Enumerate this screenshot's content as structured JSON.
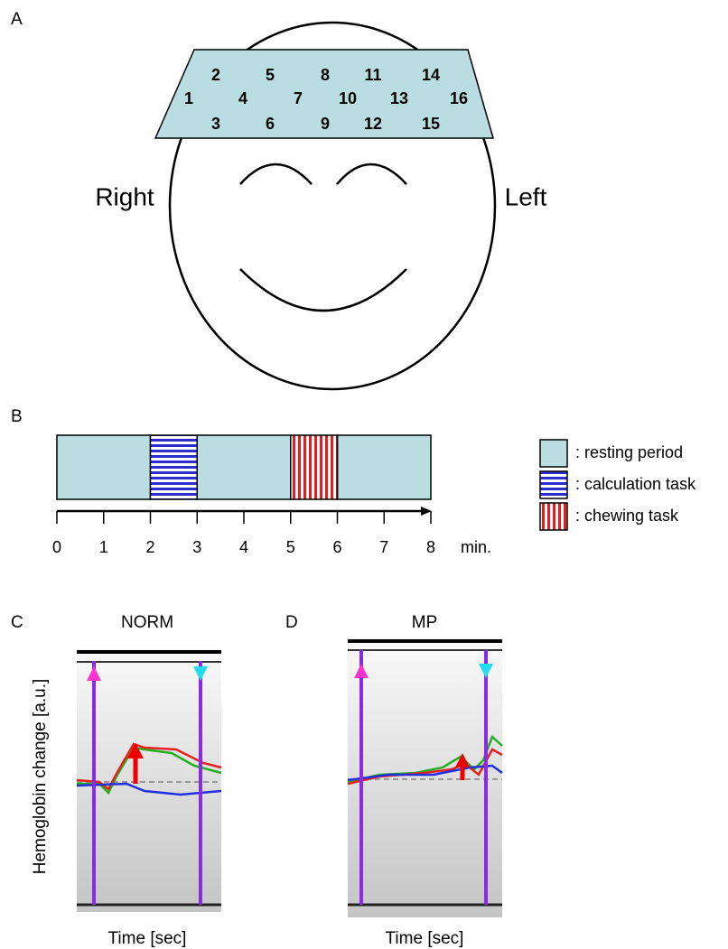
{
  "panel_labels": [
    "A",
    "B",
    "C",
    "D"
  ],
  "head": {
    "channels": [
      "1",
      "2",
      "3",
      "4",
      "5",
      "6",
      "7",
      "8",
      "9",
      "10",
      "11",
      "12",
      "13",
      "14",
      "15",
      "16"
    ],
    "right": "Right",
    "left": "Left"
  },
  "timeline": {
    "ticks": [
      0,
      1,
      2,
      3,
      4,
      5,
      6,
      7,
      8
    ],
    "unit": "min.",
    "legend": [
      {
        "label": ": resting period",
        "spans": [
          [
            0,
            2
          ],
          [
            3,
            5
          ],
          [
            6,
            8
          ]
        ]
      },
      {
        "label": ": calculation task",
        "spans": [
          [
            2,
            3
          ]
        ]
      },
      {
        "label": ": chewing task",
        "spans": [
          [
            5,
            6
          ]
        ]
      }
    ]
  },
  "panels": [
    {
      "title": "NORM",
      "x_label": "Time [sec]"
    },
    {
      "title": "MP",
      "x_label": "Time [sec]"
    }
  ],
  "y_label": "Hemoglobin change [a.u.]"
}
